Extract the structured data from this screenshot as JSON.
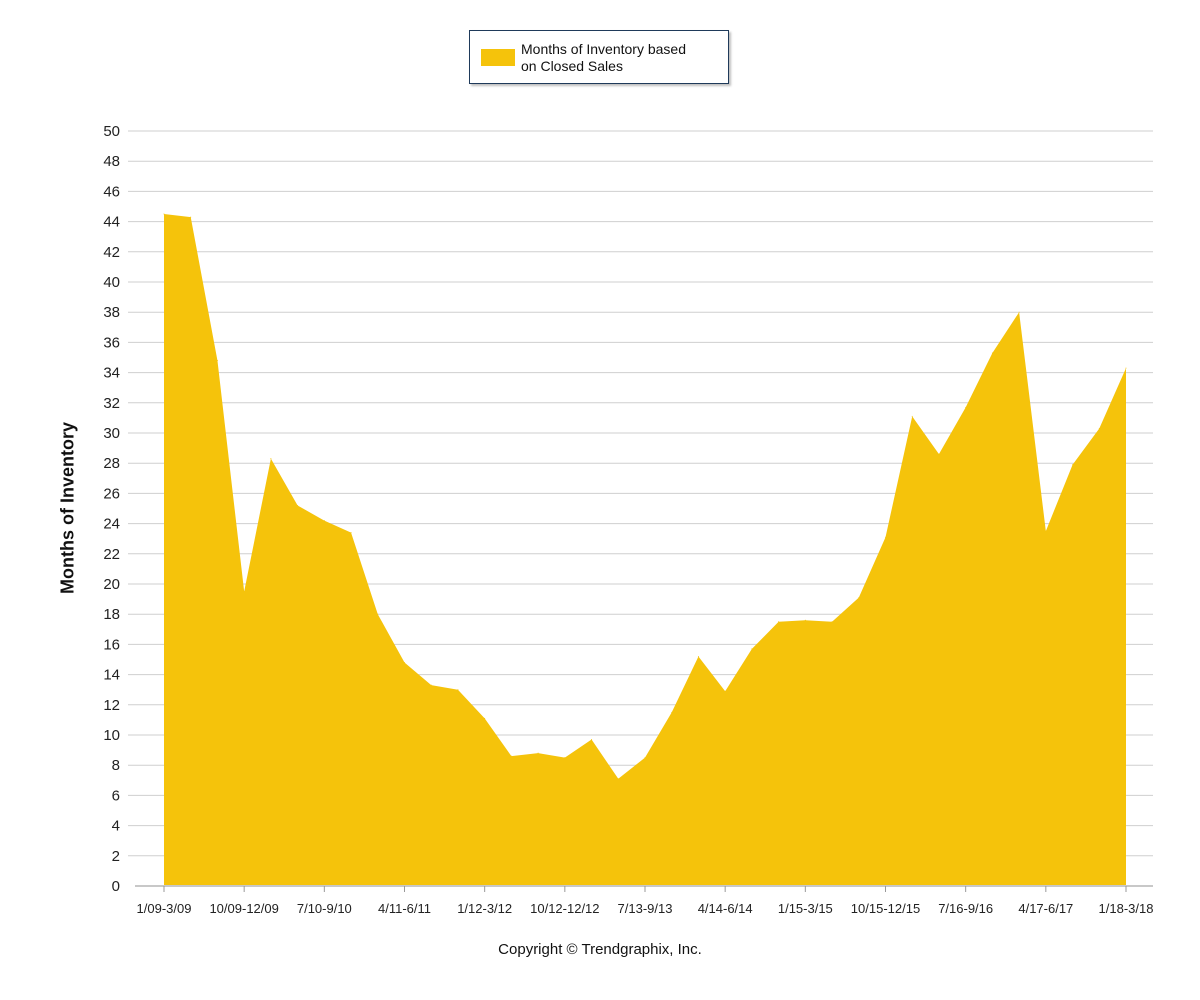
{
  "chart_data": {
    "type": "area",
    "ylabel": "Months of Inventory",
    "ylim": [
      0,
      50
    ],
    "yticks": [
      0,
      2,
      4,
      6,
      8,
      10,
      12,
      14,
      16,
      18,
      20,
      22,
      24,
      26,
      28,
      30,
      32,
      34,
      36,
      38,
      40,
      42,
      44,
      46,
      48,
      50
    ],
    "grid": true,
    "legend_position": "top-center",
    "tick_labels": [
      "1/09-3/09",
      "10/09-12/09",
      "7/10-9/10",
      "4/11-6/11",
      "1/12-3/12",
      "10/12-12/12",
      "7/13-9/13",
      "4/14-6/14",
      "1/15-3/15",
      "10/15-12/15",
      "7/16-9/16",
      "4/17-6/17",
      "1/18-3/18"
    ],
    "series": [
      {
        "name": "Months of Inventory based on Closed Sales",
        "color": "#f5c30b",
        "values": [
          44.5,
          44.3,
          34.8,
          19.5,
          28.3,
          25.2,
          24.2,
          23.4,
          18.0,
          14.8,
          13.3,
          13.0,
          11.1,
          8.6,
          8.8,
          8.5,
          9.7,
          7.1,
          8.5,
          11.5,
          15.2,
          12.9,
          15.7,
          17.5,
          17.6,
          17.5,
          19.1,
          23.1,
          31.1,
          28.6,
          31.7,
          35.3,
          38.0,
          23.5,
          27.9,
          30.3,
          34.3
        ]
      }
    ]
  },
  "legend": {
    "label_line1": "Months of Inventory based",
    "label_line2": "on Closed Sales"
  },
  "copyright": "Copyright © Trendgraphix, Inc."
}
